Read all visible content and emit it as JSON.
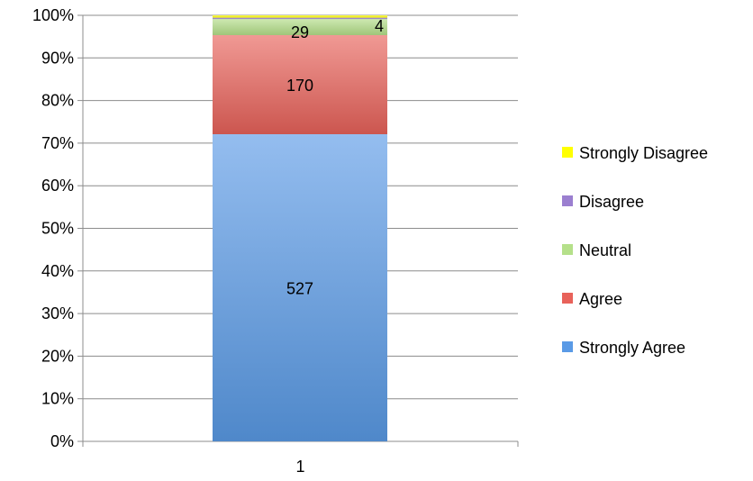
{
  "chart_data": {
    "type": "bar",
    "stacked": "percent",
    "categories": [
      "1"
    ],
    "series": [
      {
        "name": "Strongly Agree",
        "values": [
          527
        ],
        "color": "#5a9ae6"
      },
      {
        "name": "Agree",
        "values": [
          170
        ],
        "color": "#e8625a"
      },
      {
        "name": "Neutral",
        "values": [
          29
        ],
        "color": "#b5e08a"
      },
      {
        "name": "Disagree",
        "values": [
          1
        ],
        "color": "#9b7fd0"
      },
      {
        "name": "Strongly Disagree",
        "values": [
          4
        ],
        "color": "#ffff00"
      }
    ],
    "data_labels": [
      "527",
      "170",
      "29",
      "",
      "4"
    ],
    "y_ticks": [
      "0%",
      "10%",
      "20%",
      "30%",
      "40%",
      "50%",
      "60%",
      "70%",
      "80%",
      "90%",
      "100%"
    ],
    "ylim": [
      0,
      100
    ],
    "grid": true,
    "legend_position": "right"
  }
}
